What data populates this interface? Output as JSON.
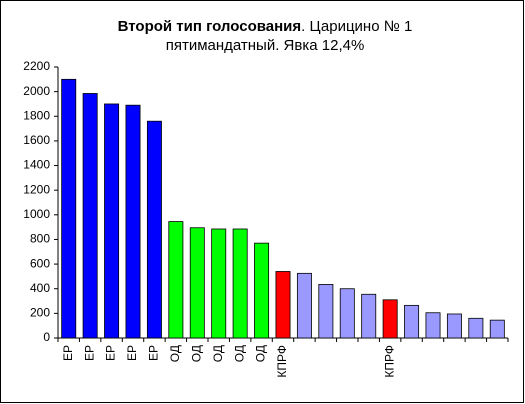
{
  "chart_data": {
    "type": "bar",
    "title": [
      "Второй тип голосования",
      ". Царицино № 1",
      "пятимандатный. Явка 12,4%"
    ],
    "categories": [
      "ЕР",
      "ЕР",
      "ЕР",
      "ЕР",
      "ЕР",
      "ОД",
      "ОД",
      "ОД",
      "ОД",
      "ОД",
      "КПРФ",
      null,
      null,
      null,
      null,
      "КПРФ",
      null,
      null,
      null,
      null,
      null
    ],
    "values": [
      2100,
      1985,
      1900,
      1890,
      1760,
      945,
      895,
      885,
      885,
      770,
      540,
      525,
      435,
      400,
      355,
      310,
      265,
      205,
      195,
      160,
      145
    ],
    "colors": [
      "#0000ff",
      "#0000ff",
      "#0000ff",
      "#0000ff",
      "#0000ff",
      "#00ff00",
      "#00ff00",
      "#00ff00",
      "#00ff00",
      "#00ff00",
      "#ff0000",
      "#9999ff",
      "#9999ff",
      "#9999ff",
      "#9999ff",
      "#ff0000",
      "#9999ff",
      "#9999ff",
      "#9999ff",
      "#9999ff",
      "#9999ff"
    ],
    "ylim": [
      0,
      2200
    ],
    "yticks": [
      0,
      200,
      400,
      600,
      800,
      1000,
      1200,
      1400,
      1600,
      1800,
      2000,
      2200
    ],
    "grid": false
  }
}
